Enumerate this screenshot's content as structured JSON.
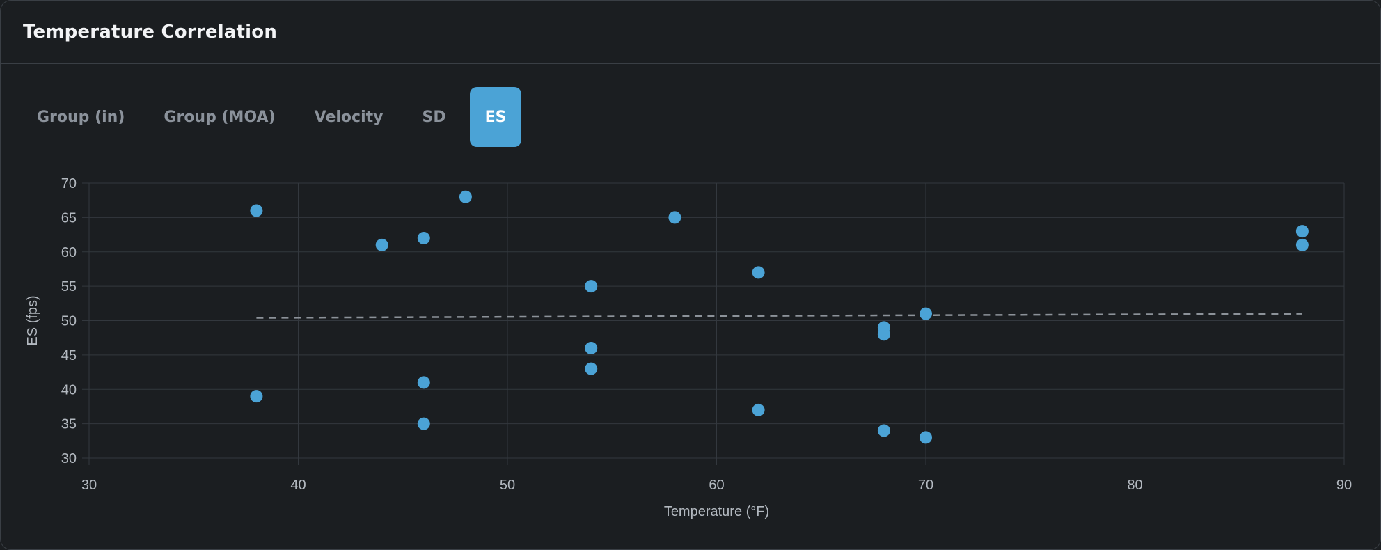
{
  "card": {
    "title": "Temperature Correlation"
  },
  "tabs": [
    {
      "label": "Group (in)",
      "active": false
    },
    {
      "label": "Group (MOA)",
      "active": false
    },
    {
      "label": "Velocity",
      "active": false
    },
    {
      "label": "SD",
      "active": false
    },
    {
      "label": "ES",
      "active": true
    }
  ],
  "colors": {
    "accent": "#4ba3d6",
    "grid": "#33383e",
    "trend": "#8c9299"
  },
  "chart_data": {
    "type": "scatter",
    "xlabel": "Temperature (°F)",
    "ylabel": "ES (fps)",
    "xlim": [
      30,
      90
    ],
    "ylim": [
      30,
      70
    ],
    "xticks": [
      30,
      40,
      50,
      60,
      70,
      80,
      90
    ],
    "yticks": [
      30,
      35,
      40,
      45,
      50,
      55,
      60,
      65,
      70
    ],
    "grid": true,
    "series": [
      {
        "points": [
          [
            38,
            66
          ],
          [
            38,
            39
          ],
          [
            44,
            61
          ],
          [
            46,
            62
          ],
          [
            46,
            41
          ],
          [
            46,
            35
          ],
          [
            48,
            68
          ],
          [
            54,
            55
          ],
          [
            54,
            46
          ],
          [
            54,
            43
          ],
          [
            58,
            65
          ],
          [
            62,
            57
          ],
          [
            62,
            37
          ],
          [
            68,
            49
          ],
          [
            68,
            48
          ],
          [
            68,
            34
          ],
          [
            70,
            51
          ],
          [
            70,
            33
          ],
          [
            88,
            63
          ],
          [
            88,
            61
          ]
        ]
      }
    ],
    "trendline": {
      "style": "dashed",
      "x": [
        38,
        88
      ],
      "y": [
        50.4,
        51.0
      ]
    }
  }
}
